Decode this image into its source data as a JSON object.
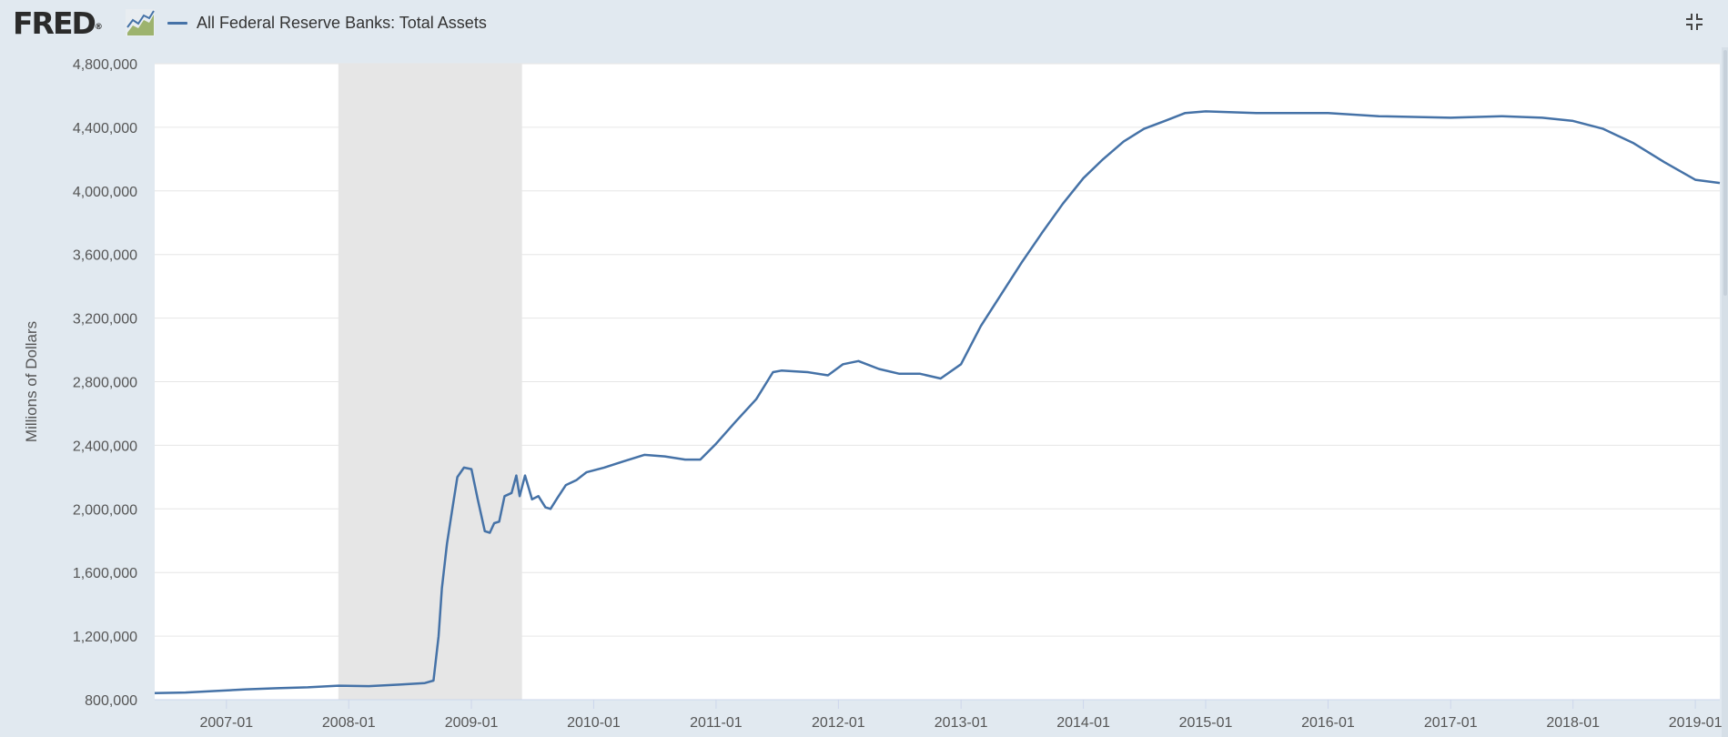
{
  "header": {
    "logo_text": "FRED",
    "logo_mark": "®",
    "logo_icon": "line-chart-icon",
    "fullscreen_icon": "exit-fullscreen-icon"
  },
  "chart_data": {
    "type": "line",
    "title": "",
    "ylabel": "Millions of Dollars",
    "xlabel": "",
    "legend": {
      "position": "top-left",
      "entries": [
        "All Federal Reserve Banks: Total Assets"
      ]
    },
    "x_range": [
      "2006-06-01",
      "2019-03-15"
    ],
    "ylim": [
      800000,
      4800000
    ],
    "y_ticks": [
      800000,
      1200000,
      1600000,
      2000000,
      2400000,
      2800000,
      3200000,
      3600000,
      4000000,
      4400000,
      4800000
    ],
    "y_tick_labels": [
      "800,000",
      "1,200,000",
      "1,600,000",
      "2,000,000",
      "2,400,000",
      "2,800,000",
      "3,200,000",
      "3,600,000",
      "4,000,000",
      "4,400,000",
      "4,800,000"
    ],
    "x_ticks": [
      "2007-01-01",
      "2008-01-01",
      "2009-01-01",
      "2010-01-01",
      "2011-01-01",
      "2012-01-01",
      "2013-01-01",
      "2014-01-01",
      "2015-01-01",
      "2016-01-01",
      "2017-01-01",
      "2018-01-01",
      "2019-01-01"
    ],
    "x_tick_labels": [
      "2007-01",
      "2008-01",
      "2009-01",
      "2010-01",
      "2011-01",
      "2012-01",
      "2013-01",
      "2014-01",
      "2015-01",
      "2016-01",
      "2017-01",
      "2018-01",
      "2019-01"
    ],
    "recession": {
      "start": "2007-12-01",
      "end": "2009-06-01"
    },
    "grid": true,
    "color": "#4572a7",
    "series": [
      {
        "name": "All Federal Reserve Banks: Total Assets",
        "points": [
          [
            "2006-06-01",
            842000
          ],
          [
            "2006-09-01",
            845000
          ],
          [
            "2006-12-01",
            855000
          ],
          [
            "2007-03-01",
            865000
          ],
          [
            "2007-06-01",
            872000
          ],
          [
            "2007-09-01",
            878000
          ],
          [
            "2007-12-01",
            888000
          ],
          [
            "2008-03-01",
            885000
          ],
          [
            "2008-06-01",
            895000
          ],
          [
            "2008-08-15",
            905000
          ],
          [
            "2008-09-10",
            920000
          ],
          [
            "2008-09-25",
            1200000
          ],
          [
            "2008-10-05",
            1500000
          ],
          [
            "2008-10-20",
            1780000
          ],
          [
            "2008-11-05",
            2000000
          ],
          [
            "2008-11-20",
            2200000
          ],
          [
            "2008-12-10",
            2260000
          ],
          [
            "2009-01-01",
            2250000
          ],
          [
            "2009-01-20",
            2060000
          ],
          [
            "2009-02-10",
            1860000
          ],
          [
            "2009-02-25",
            1850000
          ],
          [
            "2009-03-10",
            1910000
          ],
          [
            "2009-03-25",
            1920000
          ],
          [
            "2009-04-10",
            2080000
          ],
          [
            "2009-05-01",
            2100000
          ],
          [
            "2009-05-15",
            2210000
          ],
          [
            "2009-05-25",
            2080000
          ],
          [
            "2009-06-10",
            2210000
          ],
          [
            "2009-07-01",
            2060000
          ],
          [
            "2009-07-20",
            2080000
          ],
          [
            "2009-08-10",
            2010000
          ],
          [
            "2009-08-25",
            2000000
          ],
          [
            "2009-09-15",
            2070000
          ],
          [
            "2009-10-10",
            2150000
          ],
          [
            "2009-11-10",
            2180000
          ],
          [
            "2009-12-10",
            2230000
          ],
          [
            "2010-02-01",
            2260000
          ],
          [
            "2010-04-01",
            2300000
          ],
          [
            "2010-06-01",
            2340000
          ],
          [
            "2010-08-01",
            2330000
          ],
          [
            "2010-10-01",
            2310000
          ],
          [
            "2010-11-15",
            2310000
          ],
          [
            "2011-01-01",
            2410000
          ],
          [
            "2011-03-01",
            2550000
          ],
          [
            "2011-05-01",
            2690000
          ],
          [
            "2011-06-20",
            2860000
          ],
          [
            "2011-07-15",
            2870000
          ],
          [
            "2011-10-01",
            2860000
          ],
          [
            "2011-12-01",
            2840000
          ],
          [
            "2012-01-15",
            2910000
          ],
          [
            "2012-03-01",
            2930000
          ],
          [
            "2012-05-01",
            2880000
          ],
          [
            "2012-07-01",
            2850000
          ],
          [
            "2012-09-01",
            2850000
          ],
          [
            "2012-11-01",
            2820000
          ],
          [
            "2013-01-01",
            2910000
          ],
          [
            "2013-03-01",
            3150000
          ],
          [
            "2013-05-01",
            3350000
          ],
          [
            "2013-07-01",
            3550000
          ],
          [
            "2013-09-01",
            3740000
          ],
          [
            "2013-11-01",
            3920000
          ],
          [
            "2014-01-01",
            4080000
          ],
          [
            "2014-03-01",
            4200000
          ],
          [
            "2014-05-01",
            4310000
          ],
          [
            "2014-07-01",
            4390000
          ],
          [
            "2014-09-01",
            4440000
          ],
          [
            "2014-11-01",
            4490000
          ],
          [
            "2015-01-01",
            4500000
          ],
          [
            "2015-06-01",
            4490000
          ],
          [
            "2016-01-01",
            4490000
          ],
          [
            "2016-06-01",
            4470000
          ],
          [
            "2017-01-01",
            4460000
          ],
          [
            "2017-06-01",
            4470000
          ],
          [
            "2017-10-01",
            4460000
          ],
          [
            "2018-01-01",
            4440000
          ],
          [
            "2018-04-01",
            4390000
          ],
          [
            "2018-07-01",
            4300000
          ],
          [
            "2018-10-01",
            4180000
          ],
          [
            "2019-01-01",
            4070000
          ],
          [
            "2019-03-15",
            4050000
          ]
        ]
      }
    ]
  }
}
